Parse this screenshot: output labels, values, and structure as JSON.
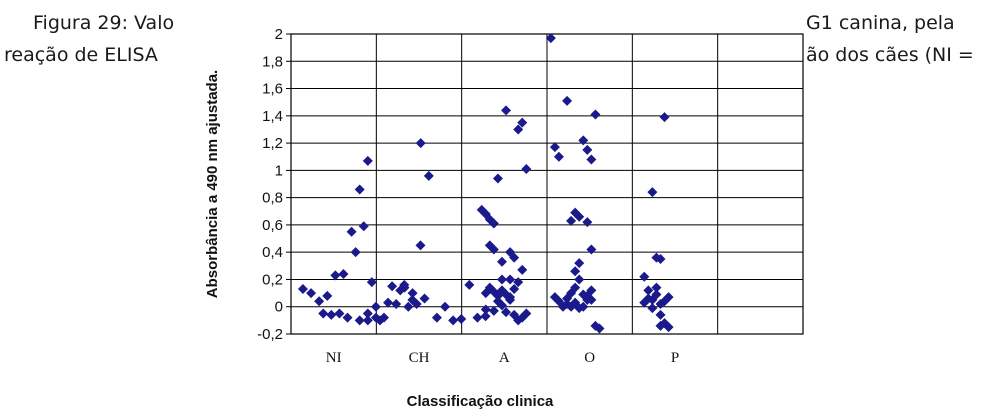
{
  "caption": {
    "line1_left": "Figura 29: Valo",
    "line2_left": "reação de ELISA",
    "line1_right": "G1 canina, pela",
    "line2_right": "ão dos cães (NI ="
  },
  "chart_data": {
    "type": "scatter",
    "title": "",
    "xlabel": "Classificação clinica",
    "ylabel": "Absorbância a 490 nm ajustada.",
    "ylim": [
      -0.2,
      2
    ],
    "yticks": [
      -0.2,
      0,
      0.2,
      0.4,
      0.6,
      0.8,
      1,
      1.2,
      1.4,
      1.6,
      1.8,
      2
    ],
    "ytick_labels": [
      "-0,2",
      "0",
      "0,2",
      "0,4",
      "0,6",
      "0,8",
      "1",
      "1,2",
      "1,4",
      "1,6",
      "1,8",
      "2"
    ],
    "categories": [
      "NI",
      "CH",
      "A",
      "O",
      "P"
    ],
    "grid": true,
    "legend": "none",
    "marker_color": "#1a1a8c",
    "series": [
      {
        "category": "NI",
        "points": [
          [
            0.2,
            0.13
          ],
          [
            0.3,
            0.1
          ],
          [
            0.4,
            0.04
          ],
          [
            0.45,
            -0.05
          ],
          [
            0.55,
            -0.06
          ],
          [
            0.6,
            0.23
          ],
          [
            0.7,
            0.24
          ],
          [
            0.8,
            0.55
          ],
          [
            0.85,
            0.4
          ],
          [
            0.9,
            0.86
          ],
          [
            0.95,
            0.59
          ],
          [
            1.0,
            1.07
          ],
          [
            1.05,
            0.18
          ],
          [
            1.1,
            0.0
          ],
          [
            1.15,
            -0.1
          ],
          [
            1.2,
            -0.08
          ],
          [
            0.75,
            -0.08
          ],
          [
            0.65,
            -0.05
          ],
          [
            0.9,
            -0.1
          ],
          [
            1.0,
            -0.05
          ],
          [
            1.25,
            0.03
          ],
          [
            1.3,
            0.15
          ],
          [
            1.35,
            0.02
          ],
          [
            1.4,
            0.12
          ],
          [
            1.5,
            0.0
          ],
          [
            1.55,
            0.05
          ],
          [
            1.65,
            0.45
          ],
          [
            1.7,
            0.06
          ],
          [
            1.45,
            0.16
          ],
          [
            1.0,
            -0.1
          ],
          [
            1.1,
            -0.08
          ],
          [
            0.5,
            0.08
          ]
        ]
      },
      {
        "category": "CH",
        "points": [
          [
            0.4,
            0.14
          ],
          [
            0.5,
            0.1
          ],
          [
            0.55,
            0.02
          ],
          [
            0.6,
            1.2
          ],
          [
            0.7,
            0.96
          ],
          [
            0.8,
            -0.08
          ],
          [
            0.9,
            0.0
          ],
          [
            1.0,
            -0.1
          ],
          [
            1.1,
            -0.09
          ],
          [
            1.2,
            0.16
          ],
          [
            1.3,
            -0.08
          ],
          [
            1.4,
            -0.07
          ]
        ]
      },
      {
        "category": "A",
        "points": [
          [
            0.3,
            0.71
          ],
          [
            0.35,
            0.68
          ],
          [
            0.4,
            0.64
          ],
          [
            0.45,
            0.61
          ],
          [
            0.4,
            0.45
          ],
          [
            0.45,
            0.42
          ],
          [
            0.5,
            0.94
          ],
          [
            0.55,
            0.33
          ],
          [
            0.6,
            1.44
          ],
          [
            0.65,
            0.4
          ],
          [
            0.7,
            0.36
          ],
          [
            0.75,
            1.3
          ],
          [
            0.8,
            1.35
          ],
          [
            0.85,
            1.01
          ],
          [
            0.8,
            0.27
          ],
          [
            0.75,
            0.18
          ],
          [
            0.65,
            0.2
          ],
          [
            0.55,
            0.2
          ],
          [
            0.35,
            0.1
          ],
          [
            0.4,
            0.14
          ],
          [
            0.45,
            0.11
          ],
          [
            0.5,
            0.08
          ],
          [
            0.55,
            0.12
          ],
          [
            0.6,
            0.09
          ],
          [
            0.65,
            0.07
          ],
          [
            0.7,
            0.13
          ],
          [
            0.35,
            -0.02
          ],
          [
            0.45,
            -0.03
          ],
          [
            0.55,
            0.01
          ],
          [
            0.6,
            -0.04
          ],
          [
            0.7,
            -0.06
          ],
          [
            0.75,
            -0.1
          ],
          [
            0.8,
            -0.08
          ],
          [
            0.85,
            -0.05
          ],
          [
            0.5,
            0.04
          ],
          [
            0.65,
            0.05
          ]
        ]
      },
      {
        "category": "O",
        "points": [
          [
            0.1,
            1.97
          ],
          [
            0.15,
            1.17
          ],
          [
            0.2,
            1.1
          ],
          [
            0.3,
            1.51
          ],
          [
            0.35,
            0.63
          ],
          [
            0.4,
            0.69
          ],
          [
            0.45,
            0.66
          ],
          [
            0.5,
            1.22
          ],
          [
            0.55,
            1.15
          ],
          [
            0.6,
            1.08
          ],
          [
            0.65,
            1.41
          ],
          [
            0.55,
            0.62
          ],
          [
            0.6,
            0.42
          ],
          [
            0.45,
            0.32
          ],
          [
            0.4,
            0.26
          ],
          [
            0.45,
            0.2
          ],
          [
            0.3,
            0.06
          ],
          [
            0.35,
            0.1
          ],
          [
            0.4,
            0.14
          ],
          [
            0.5,
            0.09
          ],
          [
            0.55,
            0.05
          ],
          [
            0.6,
            0.12
          ],
          [
            0.2,
            0.04
          ],
          [
            0.25,
            0.0
          ],
          [
            0.3,
            0.02
          ],
          [
            0.4,
            0.03
          ],
          [
            0.45,
            -0.01
          ],
          [
            0.5,
            0.0
          ],
          [
            0.55,
            0.08
          ],
          [
            0.15,
            0.07
          ],
          [
            0.65,
            -0.14
          ],
          [
            0.7,
            -0.16
          ],
          [
            0.35,
            0.0
          ],
          [
            0.6,
            0.05
          ]
        ]
      },
      {
        "category": "P",
        "points": [
          [
            0.2,
            0.22
          ],
          [
            0.25,
            0.12
          ],
          [
            0.3,
            0.84
          ],
          [
            0.35,
            0.36
          ],
          [
            0.4,
            0.35
          ],
          [
            0.45,
            1.39
          ],
          [
            0.3,
            0.05
          ],
          [
            0.35,
            0.09
          ],
          [
            0.2,
            0.03
          ],
          [
            0.25,
            0.06
          ],
          [
            0.4,
            0.02
          ],
          [
            0.45,
            0.04
          ],
          [
            0.3,
            -0.01
          ],
          [
            0.4,
            -0.06
          ],
          [
            0.45,
            -0.12
          ],
          [
            0.5,
            -0.15
          ],
          [
            0.35,
            0.14
          ],
          [
            0.5,
            0.07
          ],
          [
            0.4,
            -0.14
          ]
        ]
      }
    ]
  }
}
